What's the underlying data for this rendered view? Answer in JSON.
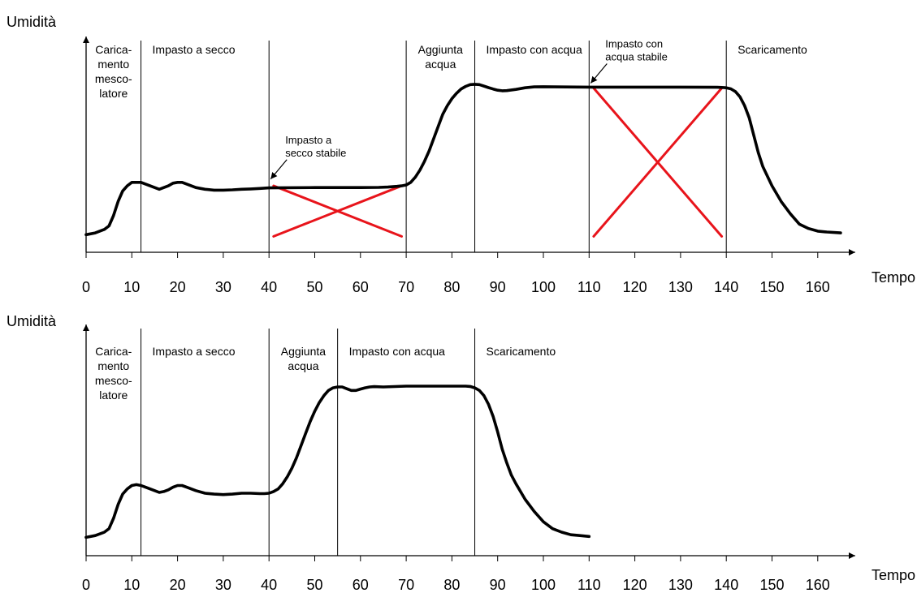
{
  "chart_data": [
    {
      "type": "line",
      "ylabel": "Umidità",
      "xlabel": "Tempo",
      "xlim": [
        0,
        165
      ],
      "x_ticks": [
        0,
        10,
        20,
        30,
        40,
        50,
        60,
        70,
        80,
        90,
        100,
        110,
        120,
        130,
        140,
        150,
        160
      ],
      "grid": false,
      "phases": [
        {
          "start": 0,
          "end": 12,
          "label": [
            "Carica-",
            "mento",
            "mesco-",
            "latore"
          ]
        },
        {
          "start": 12,
          "end": 40,
          "label": [
            "Impasto a secco"
          ]
        },
        {
          "start": 40,
          "end": 70,
          "label": []
        },
        {
          "start": 70,
          "end": 85,
          "label": [
            "Aggiunta",
            "acqua"
          ]
        },
        {
          "start": 85,
          "end": 110,
          "label": [
            "Impasto con acqua"
          ]
        },
        {
          "start": 110,
          "end": 140,
          "label": []
        },
        {
          "start": 140,
          "end": 165,
          "label": [
            "Scaricamento"
          ]
        }
      ],
      "boundaries": [
        12,
        40,
        70,
        85,
        110,
        140
      ],
      "annotations": [
        {
          "x": 40,
          "y": 0.35,
          "text": [
            "Impasto a",
            "secco stabile"
          ]
        },
        {
          "x": 110,
          "y": 0.9,
          "text": [
            "Impasto con",
            "acqua stabile"
          ]
        }
      ],
      "crossed_intervals": [
        {
          "x_start": 41,
          "x_end": 69,
          "y_low": 0.04,
          "y_high": 0.33,
          "color": "#e8141b"
        },
        {
          "x_start": 111,
          "x_end": 139,
          "y_low": 0.04,
          "y_high": 0.89,
          "color": "#e8141b"
        }
      ],
      "series": [
        {
          "x": [
            0,
            2,
            4,
            5,
            6,
            7,
            8,
            9,
            10,
            11,
            12,
            13,
            14,
            15,
            16,
            17,
            18,
            19,
            20,
            21,
            22,
            23,
            24,
            26,
            28,
            30,
            32,
            34,
            36,
            38,
            40,
            50,
            60,
            64,
            66,
            68,
            69,
            70,
            71,
            72,
            73,
            74,
            75,
            76,
            77,
            78,
            79,
            80,
            81,
            82,
            83,
            84,
            85,
            86,
            87,
            88,
            89,
            90,
            91,
            92,
            94,
            96,
            98,
            100,
            110,
            120,
            130,
            138,
            139,
            140,
            141,
            142,
            143,
            144,
            145,
            146,
            147,
            148,
            150,
            152,
            154,
            156,
            158,
            160,
            162,
            165
          ],
          "y": [
            0.05,
            0.06,
            0.08,
            0.1,
            0.16,
            0.24,
            0.3,
            0.33,
            0.35,
            0.35,
            0.35,
            0.34,
            0.33,
            0.32,
            0.31,
            0.32,
            0.33,
            0.345,
            0.35,
            0.35,
            0.34,
            0.33,
            0.32,
            0.31,
            0.305,
            0.305,
            0.307,
            0.31,
            0.312,
            0.315,
            0.318,
            0.32,
            0.32,
            0.321,
            0.323,
            0.327,
            0.33,
            0.335,
            0.35,
            0.38,
            0.42,
            0.47,
            0.53,
            0.6,
            0.67,
            0.74,
            0.79,
            0.83,
            0.86,
            0.885,
            0.9,
            0.91,
            0.912,
            0.91,
            0.902,
            0.893,
            0.885,
            0.878,
            0.875,
            0.876,
            0.883,
            0.892,
            0.897,
            0.898,
            0.896,
            0.896,
            0.896,
            0.895,
            0.894,
            0.892,
            0.886,
            0.87,
            0.84,
            0.79,
            0.72,
            0.62,
            0.52,
            0.44,
            0.33,
            0.24,
            0.17,
            0.11,
            0.085,
            0.07,
            0.065,
            0.06
          ]
        }
      ]
    },
    {
      "type": "line",
      "ylabel": "Umidità",
      "xlabel": "Tempo",
      "xlim": [
        0,
        165
      ],
      "x_ticks": [
        0,
        10,
        20,
        30,
        40,
        50,
        60,
        70,
        80,
        90,
        100,
        110,
        120,
        130,
        140,
        150,
        160
      ],
      "grid": false,
      "phases": [
        {
          "start": 0,
          "end": 12,
          "label": [
            "Carica-",
            "mento",
            "mesco-",
            "latore"
          ]
        },
        {
          "start": 12,
          "end": 40,
          "label": [
            "Impasto a secco"
          ]
        },
        {
          "start": 40,
          "end": 55,
          "label": [
            "Aggiunta",
            "acqua"
          ]
        },
        {
          "start": 55,
          "end": 85,
          "label": [
            "Impasto con acqua"
          ]
        },
        {
          "start": 85,
          "end": 165,
          "label": [
            "Scaricamento"
          ]
        }
      ],
      "boundaries": [
        12,
        40,
        55,
        85
      ],
      "annotations": [],
      "crossed_intervals": [],
      "series": [
        {
          "x": [
            0,
            2,
            4,
            5,
            6,
            7,
            8,
            9,
            10,
            11,
            12,
            13,
            14,
            15,
            16,
            17,
            18,
            19,
            20,
            21,
            22,
            23,
            24,
            26,
            28,
            30,
            32,
            34,
            36,
            38,
            39,
            40,
            41,
            42,
            43,
            44,
            45,
            46,
            47,
            48,
            49,
            50,
            51,
            52,
            53,
            54,
            55,
            56,
            57,
            58,
            59,
            60,
            61,
            62,
            63,
            65,
            70,
            75,
            80,
            83,
            84,
            85,
            86,
            87,
            88,
            89,
            90,
            91,
            92,
            93,
            94,
            96,
            98,
            100,
            102,
            104,
            106,
            108,
            110
          ],
          "y": [
            0.05,
            0.06,
            0.08,
            0.1,
            0.16,
            0.24,
            0.3,
            0.33,
            0.35,
            0.355,
            0.35,
            0.34,
            0.33,
            0.32,
            0.31,
            0.315,
            0.325,
            0.34,
            0.35,
            0.35,
            0.34,
            0.33,
            0.32,
            0.305,
            0.3,
            0.297,
            0.3,
            0.305,
            0.305,
            0.303,
            0.303,
            0.305,
            0.315,
            0.33,
            0.36,
            0.4,
            0.45,
            0.51,
            0.58,
            0.65,
            0.72,
            0.78,
            0.83,
            0.87,
            0.9,
            0.915,
            0.92,
            0.92,
            0.91,
            0.9,
            0.9,
            0.908,
            0.915,
            0.92,
            0.922,
            0.92,
            0.925,
            0.925,
            0.925,
            0.925,
            0.923,
            0.915,
            0.9,
            0.87,
            0.82,
            0.75,
            0.66,
            0.56,
            0.48,
            0.41,
            0.36,
            0.27,
            0.2,
            0.14,
            0.1,
            0.08,
            0.065,
            0.06,
            0.055
          ]
        }
      ]
    }
  ]
}
